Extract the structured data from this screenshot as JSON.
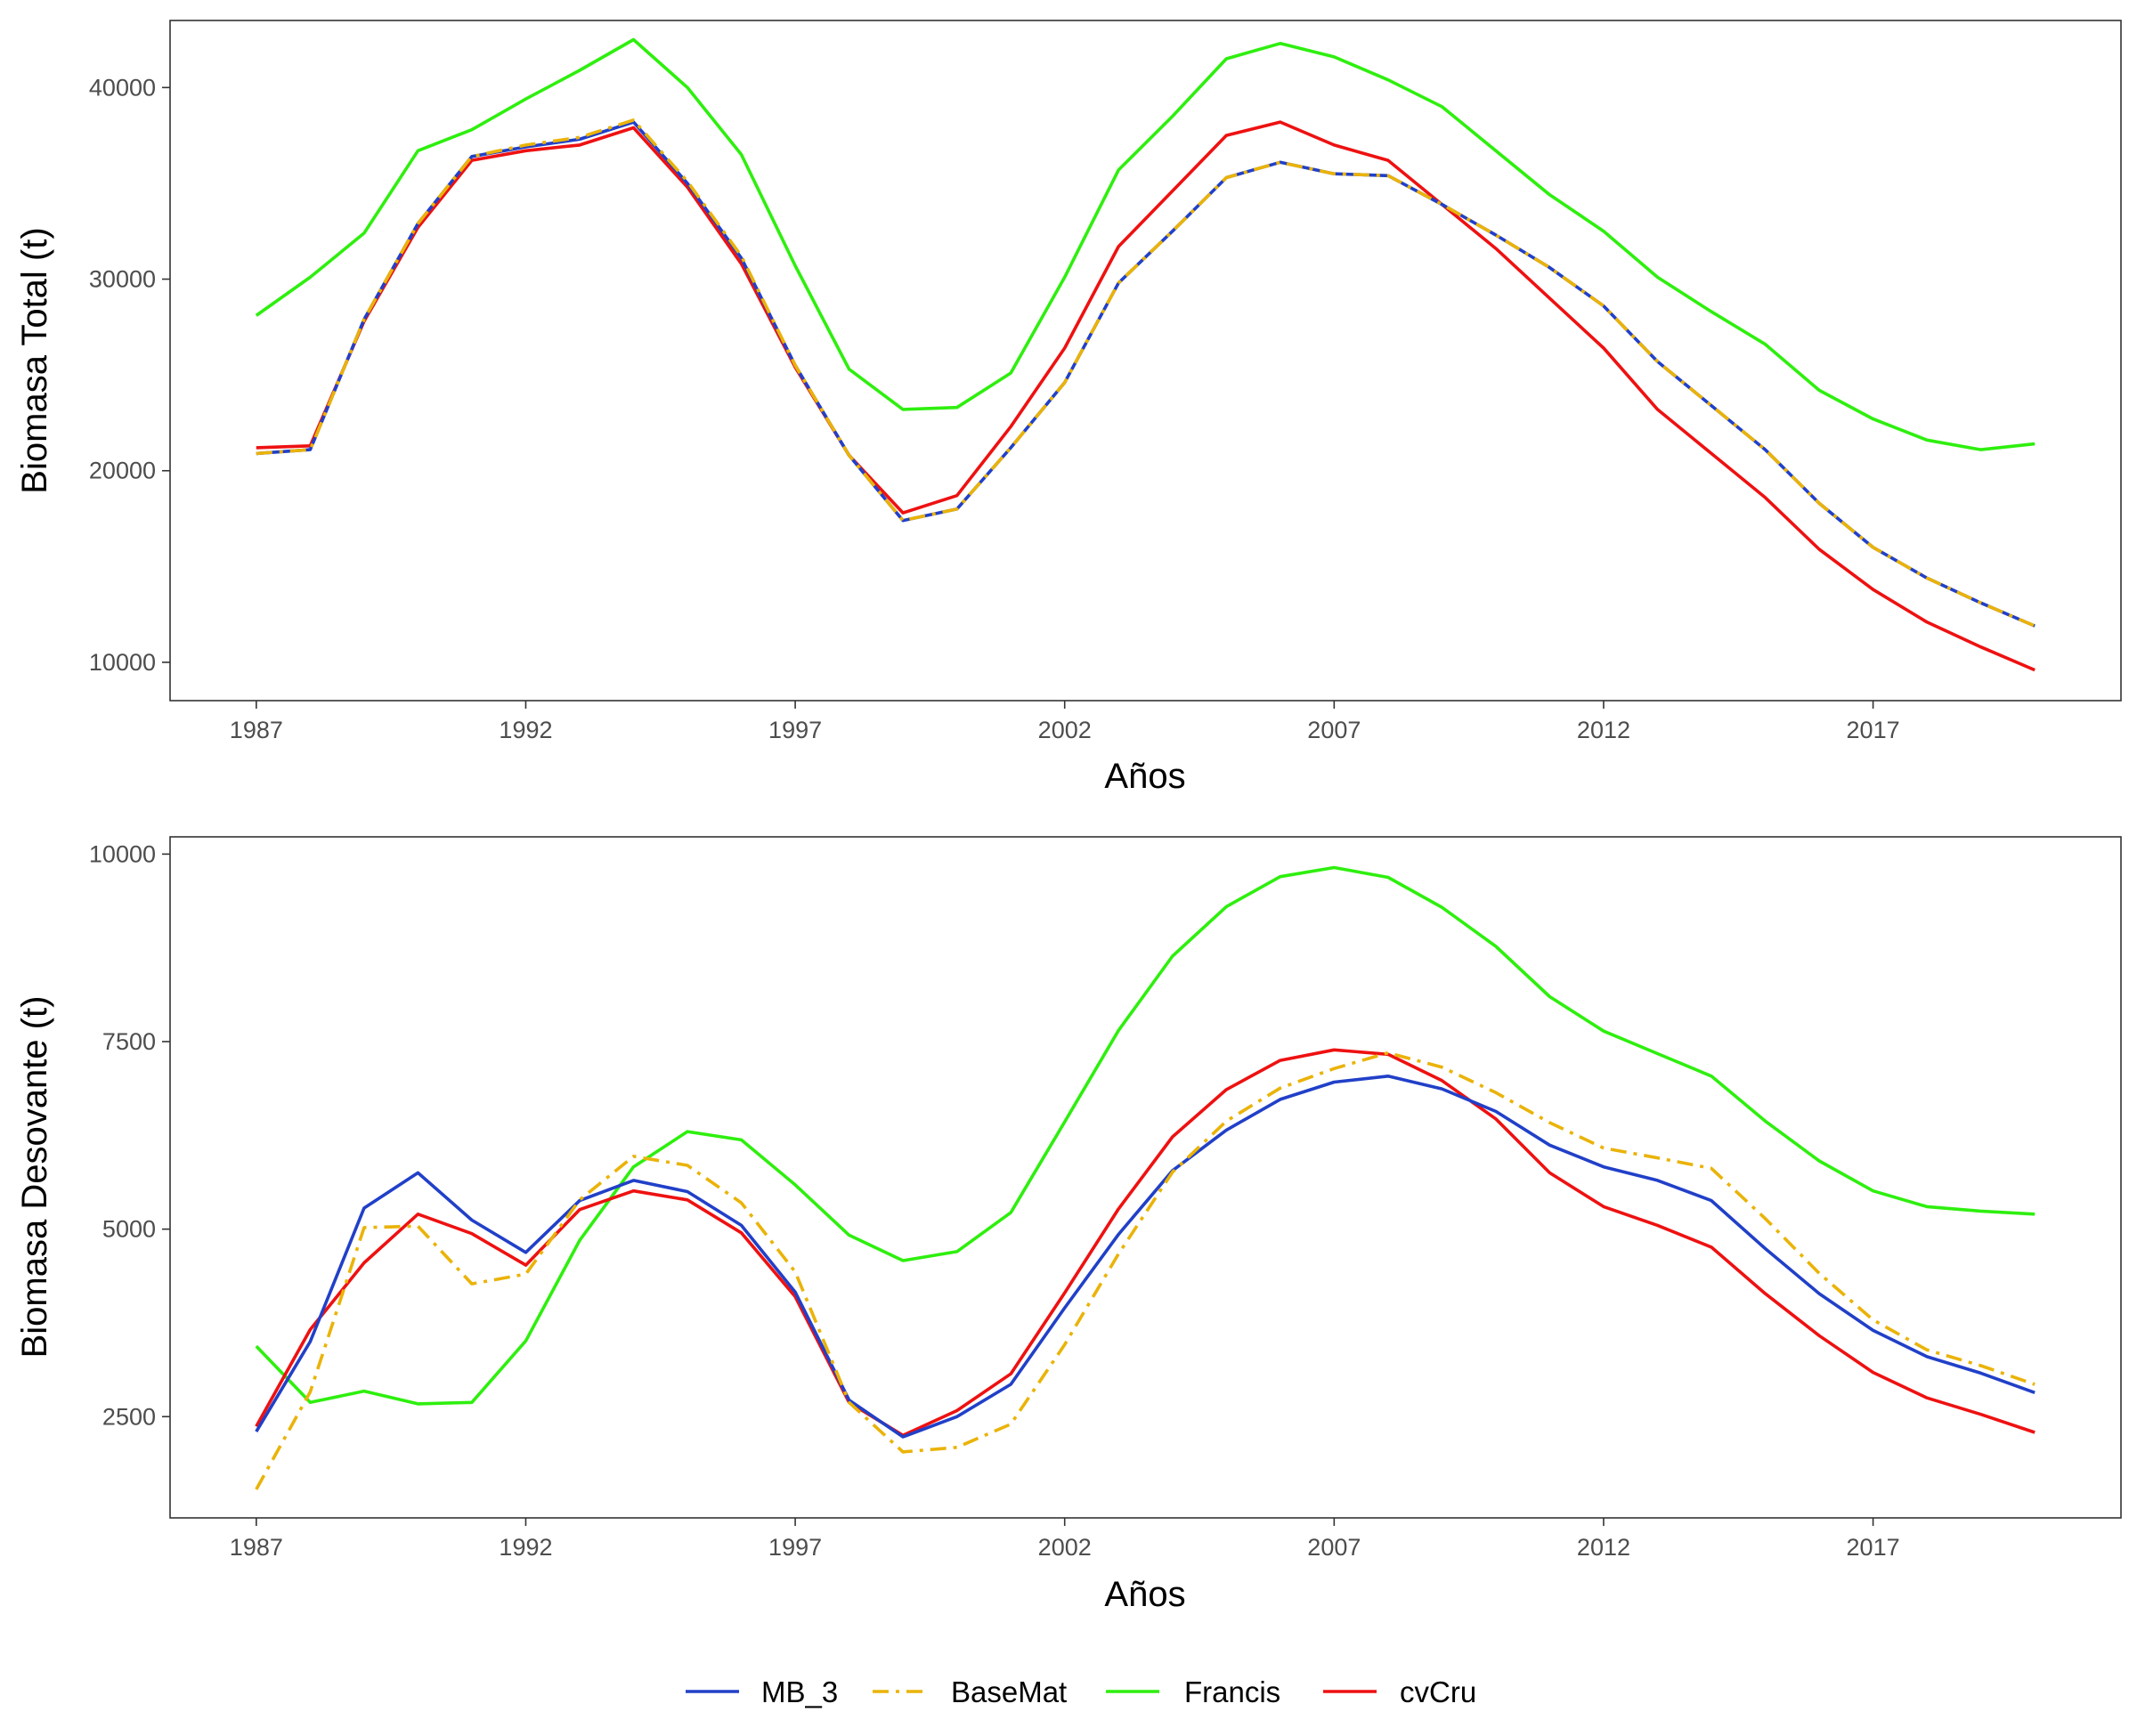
{
  "colors": {
    "MB_3": "#2140c8",
    "BaseMat": "#eab308",
    "Francis": "#2eef0e",
    "cvCru": "#ee1111"
  },
  "legend": {
    "items": [
      {
        "name": "MB_3",
        "dash": "solid"
      },
      {
        "name": "BaseMat",
        "dash": "dashdot"
      },
      {
        "name": "Francis",
        "dash": "solid"
      },
      {
        "name": "cvCru",
        "dash": "solid"
      }
    ]
  },
  "chart_data": [
    {
      "type": "line",
      "title": "",
      "xlabel": "Años",
      "ylabel": "Biomasa Total (t)",
      "x": [
        1987,
        1988,
        1989,
        1990,
        1991,
        1992,
        1993,
        1994,
        1995,
        1996,
        1997,
        1998,
        1999,
        2000,
        2001,
        2002,
        2003,
        2004,
        2005,
        2006,
        2007,
        2008,
        2009,
        2010,
        2011,
        2012,
        2013,
        2014,
        2015,
        2016,
        2017,
        2018,
        2019,
        2020
      ],
      "xticks": [
        1987,
        1992,
        1997,
        2002,
        2007,
        2012,
        2017
      ],
      "yticks": [
        10000,
        20000,
        30000,
        40000
      ],
      "xlim": [
        1985.4,
        2021.6
      ],
      "ylim": [
        8000,
        43500
      ],
      "grid": false,
      "series": [
        {
          "name": "MB_3",
          "values": [
            20900,
            21100,
            27900,
            32900,
            36400,
            36900,
            37300,
            38200,
            35000,
            31100,
            25500,
            20800,
            17400,
            18000,
            21200,
            24600,
            29800,
            32500,
            35300,
            36100,
            35500,
            35400,
            33900,
            32300,
            30600,
            28600,
            25700,
            23400,
            21100,
            18300,
            16000,
            14400,
            13100,
            11900
          ]
        },
        {
          "name": "BaseMat",
          "values": [
            20900,
            21100,
            27900,
            32900,
            36400,
            37000,
            37400,
            38300,
            35100,
            31200,
            25500,
            20800,
            17400,
            18000,
            21200,
            24600,
            29800,
            32500,
            35300,
            36100,
            35500,
            35400,
            33900,
            32300,
            30600,
            28600,
            25700,
            23400,
            21100,
            18300,
            16000,
            14400,
            13100,
            11900
          ]
        },
        {
          "name": "Francis",
          "values": [
            28100,
            30100,
            32400,
            36700,
            37800,
            39400,
            40900,
            42500,
            40000,
            36500,
            30700,
            25300,
            23200,
            23300,
            25100,
            30100,
            35700,
            38500,
            41500,
            42300,
            41600,
            40400,
            39000,
            36700,
            34400,
            32500,
            30100,
            28300,
            26600,
            24200,
            22700,
            21600,
            21100,
            21400
          ]
        },
        {
          "name": "cvCru",
          "values": [
            21200,
            21300,
            27800,
            32700,
            36200,
            36700,
            37000,
            37900,
            34800,
            30800,
            25400,
            20800,
            17800,
            18700,
            22300,
            26400,
            31700,
            34600,
            37500,
            38200,
            37000,
            36200,
            33900,
            31600,
            29000,
            26400,
            23200,
            20900,
            18600,
            15900,
            13800,
            12100,
            10800,
            9600
          ]
        }
      ]
    },
    {
      "type": "line",
      "title": "",
      "xlabel": "Años",
      "ylabel": "Biomasa Desovante (t)",
      "x": [
        1987,
        1988,
        1989,
        1990,
        1991,
        1992,
        1993,
        1994,
        1995,
        1996,
        1997,
        1998,
        1999,
        2000,
        2001,
        2002,
        2003,
        2004,
        2005,
        2006,
        2007,
        2008,
        2009,
        2010,
        2011,
        2012,
        2013,
        2014,
        2015,
        2016,
        2017,
        2018,
        2019,
        2020
      ],
      "xticks": [
        1987,
        1992,
        1997,
        2002,
        2007,
        2012,
        2017
      ],
      "yticks": [
        2500,
        5000,
        7500,
        10000
      ],
      "xlim": [
        1985.4,
        2021.6
      ],
      "ylim": [
        1150,
        10230
      ],
      "grid": false,
      "series": [
        {
          "name": "MB_3",
          "values": [
            2300,
            3500,
            5280,
            5750,
            5120,
            4690,
            5380,
            5650,
            5500,
            5050,
            4160,
            2720,
            2230,
            2500,
            2930,
            3950,
            4930,
            5780,
            6320,
            6730,
            6960,
            7040,
            6870,
            6570,
            6120,
            5830,
            5650,
            5380,
            4740,
            4140,
            3650,
            3300,
            3080,
            2820
          ]
        },
        {
          "name": "BaseMat",
          "values": [
            1530,
            2830,
            5020,
            5040,
            4270,
            4400,
            5390,
            5970,
            5850,
            5350,
            4430,
            2690,
            2030,
            2090,
            2400,
            3460,
            4670,
            5760,
            6440,
            6880,
            7140,
            7350,
            7160,
            6820,
            6420,
            6080,
            5950,
            5810,
            5140,
            4410,
            3790,
            3390,
            3180,
            2930
          ]
        },
        {
          "name": "Francis",
          "values": [
            3440,
            2690,
            2840,
            2670,
            2690,
            3510,
            4850,
            5830,
            6300,
            6190,
            5590,
            4920,
            4580,
            4700,
            5220,
            6430,
            7650,
            8640,
            9300,
            9700,
            9820,
            9690,
            9290,
            8770,
            8100,
            7640,
            7340,
            7040,
            6440,
            5910,
            5510,
            5300,
            5240,
            5200
          ]
        },
        {
          "name": "cvCru",
          "values": [
            2370,
            3660,
            4550,
            5200,
            4940,
            4520,
            5260,
            5510,
            5390,
            4950,
            4100,
            2690,
            2250,
            2580,
            3070,
            4150,
            5270,
            6230,
            6860,
            7250,
            7390,
            7330,
            6980,
            6470,
            5750,
            5300,
            5050,
            4760,
            4140,
            3580,
            3090,
            2750,
            2530,
            2290
          ]
        }
      ]
    }
  ]
}
